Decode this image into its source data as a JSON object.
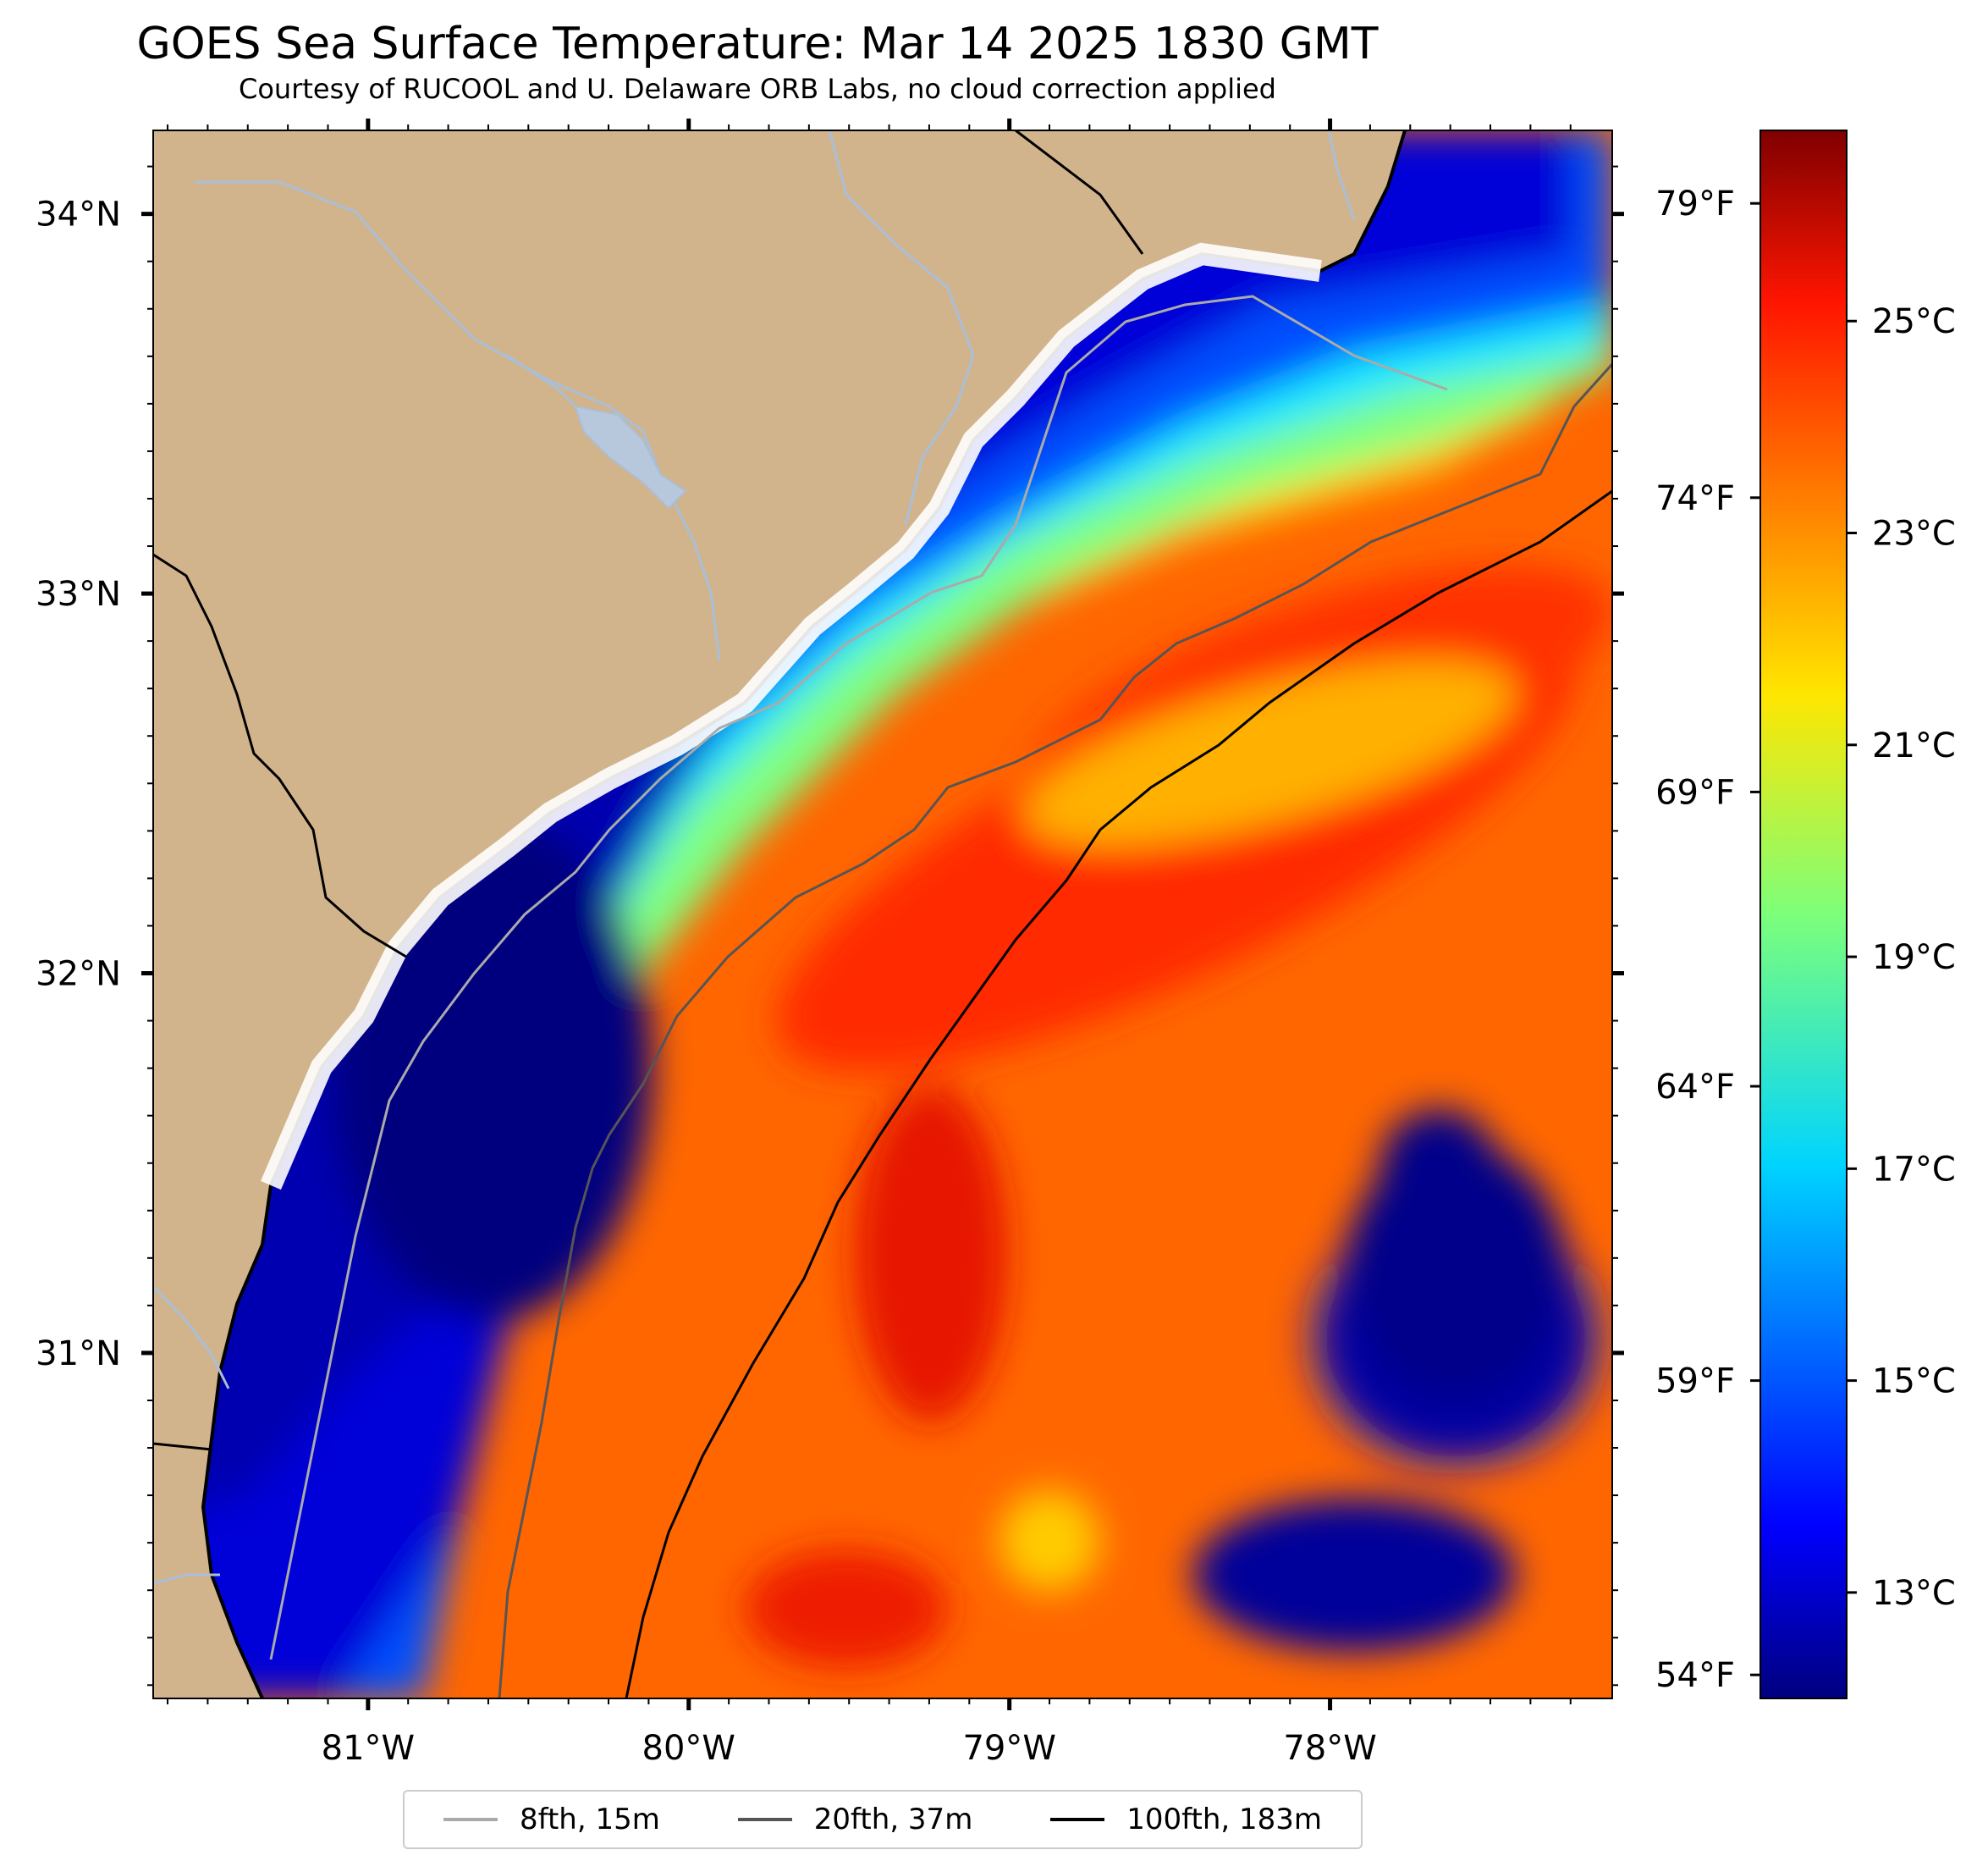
{
  "title": "GOES Sea Surface Temperature: Mar 14 2025 1830 GMT",
  "subtitle": "Courtesy of RUCOOL and U. Delaware ORB Labs, no cloud correction applied",
  "map": {
    "lon_range": [
      -81.67,
      -77.12
    ],
    "lat_range": [
      30.09,
      34.22
    ],
    "lon_ticks": [
      {
        "value": -81,
        "label": "81°W"
      },
      {
        "value": -80,
        "label": "80°W"
      },
      {
        "value": -79,
        "label": "79°W"
      },
      {
        "value": -78,
        "label": "78°W"
      }
    ],
    "lat_ticks": [
      {
        "value": 34,
        "label": "34°N"
      },
      {
        "value": 33,
        "label": "33°N"
      },
      {
        "value": 32,
        "label": "32°N"
      },
      {
        "value": 31,
        "label": "31°N"
      }
    ],
    "colors": {
      "land": "#d2b48c",
      "rivers": "#a9bfd8",
      "coastline": "#000000"
    }
  },
  "colorbar": {
    "colormap": "jet",
    "range_c": [
      12.0,
      26.8
    ],
    "celsius_ticks": [
      {
        "value": 13,
        "label": "13°C"
      },
      {
        "value": 15,
        "label": "15°C"
      },
      {
        "value": 17,
        "label": "17°C"
      },
      {
        "value": 19,
        "label": "19°C"
      },
      {
        "value": 21,
        "label": "21°C"
      },
      {
        "value": 23,
        "label": "23°C"
      },
      {
        "value": 25,
        "label": "25°C"
      }
    ],
    "fahrenheit_ticks": [
      {
        "value": 54,
        "label": "54°F"
      },
      {
        "value": 59,
        "label": "59°F"
      },
      {
        "value": 64,
        "label": "64°F"
      },
      {
        "value": 69,
        "label": "69°F"
      },
      {
        "value": 74,
        "label": "74°F"
      },
      {
        "value": 79,
        "label": "79°F"
      }
    ]
  },
  "legend": [
    {
      "label": "8fth, 15m",
      "color": "#aaaaaa"
    },
    {
      "label": "20fth, 37m",
      "color": "#555555"
    },
    {
      "label": "100fth, 183m",
      "color": "#000000"
    }
  ]
}
